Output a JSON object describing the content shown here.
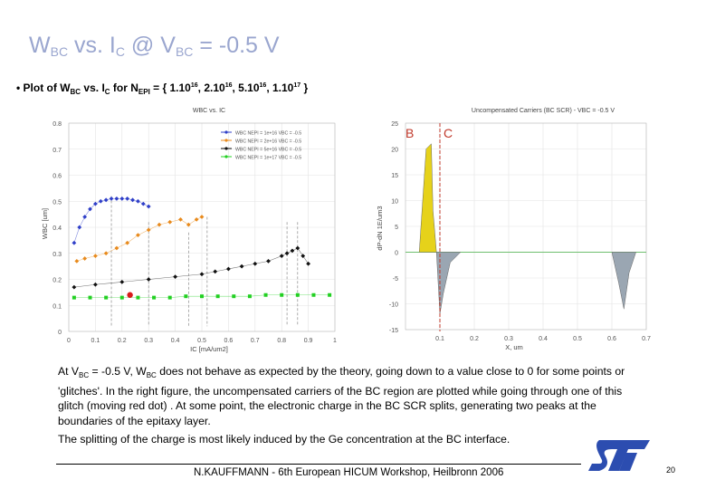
{
  "slide": {
    "title_main": "W",
    "title_sub1": "BC",
    "title_mid": " vs. I",
    "title_sub2": "C",
    "title_end1": "  @ V",
    "title_sub3": "BC",
    "title_end2": " = -0.5 V",
    "bullet_prefix": "• Plot of  W",
    "bullet_sub1": "BC",
    "bullet_mid": "  vs.  I",
    "bullet_sub2": "C",
    "bullet_for": " for N",
    "bullet_sub3": "EPI",
    "bullet_list_a": " = { 1.10",
    "bullet_exp_a": "16",
    "bullet_list_b": ", 2.10",
    "bullet_exp_b": "16",
    "bullet_list_c": ", 5.10",
    "bullet_exp_c": "16",
    "bullet_list_d": ", 1.10",
    "bullet_exp_d": "17",
    "bullet_end": " }",
    "para1_a": "At V",
    "para1_sub1": "BC",
    "para1_b": " = -0.5 V, W",
    "para1_sub2": "BC",
    "para1_c": " does not behave as expected by the theory, going down to a value close to 0 for some points or 'glitches'. In the right figure, the uncompensated carriers of the BC region are plotted while going through one of this glitch (moving red dot) . At some point, the electronic charge in the BC SCR splits, generating two peaks at the boundaries of the epitaxy layer.",
    "para2": "The splitting of the charge is most likely induced by the Ge concentration at the BC interface.",
    "footer": "N.KAUFFMANN - 6th European HICUM Workshop, Heilbronn 2006",
    "page_number": "20"
  },
  "colors": {
    "title": "#9aa6cf",
    "series_1": "#2f3fc8",
    "series_2": "#e88a1c",
    "series_3": "#111111",
    "series_4": "#22d022",
    "highlight_dot": "#d81b1b",
    "dashed_marker": "#c0392b",
    "yellow_peak": "#e6d21a",
    "gray_area": "#9aa6b2",
    "logo": "#2c4db0"
  },
  "chart_data": [
    {
      "type": "scatter",
      "title": "WBC vs. IC",
      "xlabel": "IC  [mA/um2]",
      "ylabel": "WBC  [um]",
      "xlim": [
        0,
        1
      ],
      "ylim": [
        0,
        0.8
      ],
      "xticks": [
        "0",
        "0.1",
        "0.2",
        "0.3",
        "0.4",
        "0.5",
        "0.6",
        "0.7",
        "0.8",
        "0.9",
        "1"
      ],
      "yticks": [
        "0",
        "0.1",
        "0.2",
        "0.3",
        "0.4",
        "0.5",
        "0.6",
        "0.7",
        "0.8"
      ],
      "grid": true,
      "legend": "top-right",
      "series": [
        {
          "name": "WBC  NEPI = 1e+16  VBC = -0.5",
          "x": [
            0.02,
            0.04,
            0.06,
            0.08,
            0.1,
            0.12,
            0.14,
            0.16,
            0.18,
            0.2,
            0.22,
            0.24,
            0.26,
            0.28,
            0.3
          ],
          "y": [
            0.34,
            0.4,
            0.44,
            0.47,
            0.49,
            0.5,
            0.505,
            0.51,
            0.51,
            0.51,
            0.51,
            0.505,
            0.5,
            0.49,
            0.48
          ]
        },
        {
          "name": "WBC  NEPI = 2e+16  VBC = -0.5",
          "x": [
            0.03,
            0.06,
            0.1,
            0.14,
            0.18,
            0.22,
            0.26,
            0.3,
            0.34,
            0.38,
            0.42,
            0.45,
            0.48,
            0.5
          ],
          "y": [
            0.27,
            0.28,
            0.29,
            0.3,
            0.32,
            0.34,
            0.37,
            0.39,
            0.41,
            0.42,
            0.43,
            0.41,
            0.43,
            0.44
          ]
        },
        {
          "name": "WBC  NEPI = 5e+16  VBC = -0.5",
          "x": [
            0.02,
            0.1,
            0.2,
            0.3,
            0.4,
            0.5,
            0.55,
            0.6,
            0.65,
            0.7,
            0.75,
            0.8,
            0.82,
            0.84,
            0.86,
            0.88,
            0.9
          ],
          "y": [
            0.17,
            0.18,
            0.19,
            0.2,
            0.21,
            0.22,
            0.23,
            0.24,
            0.25,
            0.26,
            0.27,
            0.29,
            0.3,
            0.31,
            0.32,
            0.29,
            0.26
          ]
        },
        {
          "name": "WBC  NEPI = 1e+17  VBC = -0.5",
          "x": [
            0.02,
            0.08,
            0.14,
            0.2,
            0.26,
            0.32,
            0.38,
            0.44,
            0.5,
            0.56,
            0.62,
            0.68,
            0.74,
            0.8,
            0.86,
            0.92,
            0.98
          ],
          "y": [
            0.13,
            0.13,
            0.13,
            0.13,
            0.13,
            0.13,
            0.13,
            0.135,
            0.135,
            0.135,
            0.135,
            0.135,
            0.14,
            0.14,
            0.14,
            0.14,
            0.14
          ]
        }
      ],
      "highlight_point": {
        "x": 0.23,
        "y": 0.14
      }
    },
    {
      "type": "area",
      "title": "Uncompensated Carriers (BC SCR) - VBC = -0.5 V",
      "xlabel": "X, um",
      "ylabel": "dP-dN  1E/um3",
      "xlim": [
        0,
        0.7
      ],
      "ylim": [
        -15,
        25
      ],
      "xticks": [
        "0.1",
        "0.2",
        "0.3",
        "0.4",
        "0.5",
        "0.6",
        "0.7"
      ],
      "yticks": [
        "-15",
        "-10",
        "-5",
        "0",
        "5",
        "10",
        "15",
        "20",
        "25"
      ],
      "grid": true,
      "annotations": [
        "B",
        "C"
      ],
      "positive_peak": {
        "x": [
          0.04,
          0.06,
          0.075,
          0.08,
          0.09
        ],
        "y": [
          0,
          20,
          21,
          8,
          0
        ]
      },
      "negative_peaks": [
        {
          "x": [
            0.09,
            0.1,
            0.11,
            0.13,
            0.16
          ],
          "y": [
            0,
            -12,
            -8,
            -2,
            0
          ]
        },
        {
          "x": [
            0.6,
            0.62,
            0.635,
            0.65,
            0.67
          ],
          "y": [
            0,
            -6,
            -11,
            -4,
            0
          ]
        }
      ],
      "bc_interface_x": 0.1
    }
  ]
}
